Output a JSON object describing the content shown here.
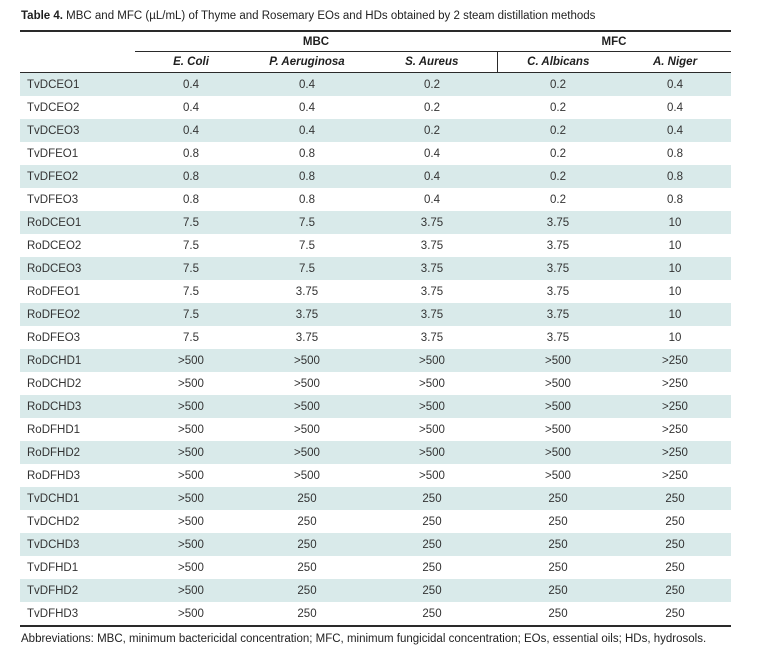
{
  "caption": {
    "label": "Table 4.",
    "text": " MBC and MFC (µL/mL) of Thyme and Rosemary EOs and HDs obtained by 2 steam distillation methods"
  },
  "table": {
    "group_headers": [
      {
        "label": "MBC",
        "span": 3
      },
      {
        "label": "MFC",
        "span": 2
      }
    ],
    "column_headers": [
      "E. Coli",
      "P. Aeruginosa",
      "S. Aureus",
      "C. Albicans",
      "A. Niger"
    ],
    "rows": [
      {
        "label": "TvDCEO1",
        "values": [
          "0.4",
          "0.4",
          "0.2",
          "0.2",
          "0.4"
        ]
      },
      {
        "label": "TvDCEO2",
        "values": [
          "0.4",
          "0.4",
          "0.2",
          "0.2",
          "0.4"
        ]
      },
      {
        "label": "TvDCEO3",
        "values": [
          "0.4",
          "0.4",
          "0.2",
          "0.2",
          "0.4"
        ]
      },
      {
        "label": "TvDFEO1",
        "values": [
          "0.8",
          "0.8",
          "0.4",
          "0.2",
          "0.8"
        ]
      },
      {
        "label": "TvDFEO2",
        "values": [
          "0.8",
          "0.8",
          "0.4",
          "0.2",
          "0.8"
        ]
      },
      {
        "label": "TvDFEO3",
        "values": [
          "0.8",
          "0.8",
          "0.4",
          "0.2",
          "0.8"
        ]
      },
      {
        "label": "RoDCEO1",
        "values": [
          "7.5",
          "7.5",
          "3.75",
          "3.75",
          "10"
        ]
      },
      {
        "label": "RoDCEO2",
        "values": [
          "7.5",
          "7.5",
          "3.75",
          "3.75",
          "10"
        ]
      },
      {
        "label": "RoDCEO3",
        "values": [
          "7.5",
          "7.5",
          "3.75",
          "3.75",
          "10"
        ]
      },
      {
        "label": "RoDFEO1",
        "values": [
          "7.5",
          "3.75",
          "3.75",
          "3.75",
          "10"
        ]
      },
      {
        "label": "RoDFEO2",
        "values": [
          "7.5",
          "3.75",
          "3.75",
          "3.75",
          "10"
        ]
      },
      {
        "label": "RoDFEO3",
        "values": [
          "7.5",
          "3.75",
          "3.75",
          "3.75",
          "10"
        ]
      },
      {
        "label": "RoDCHD1",
        "values": [
          ">500",
          ">500",
          ">500",
          ">500",
          ">250"
        ]
      },
      {
        "label": "RoDCHD2",
        "values": [
          ">500",
          ">500",
          ">500",
          ">500",
          ">250"
        ]
      },
      {
        "label": "RoDCHD3",
        "values": [
          ">500",
          ">500",
          ">500",
          ">500",
          ">250"
        ]
      },
      {
        "label": "RoDFHD1",
        "values": [
          ">500",
          ">500",
          ">500",
          ">500",
          ">250"
        ]
      },
      {
        "label": "RoDFHD2",
        "values": [
          ">500",
          ">500",
          ">500",
          ">500",
          ">250"
        ]
      },
      {
        "label": "RoDFHD3",
        "values": [
          ">500",
          ">500",
          ">500",
          ">500",
          ">250"
        ]
      },
      {
        "label": "TvDCHD1",
        "values": [
          ">500",
          "250",
          "250",
          "250",
          "250"
        ]
      },
      {
        "label": "TvDCHD2",
        "values": [
          ">500",
          "250",
          "250",
          "250",
          "250"
        ]
      },
      {
        "label": "TvDCHD3",
        "values": [
          ">500",
          "250",
          "250",
          "250",
          "250"
        ]
      },
      {
        "label": "TvDFHD1",
        "values": [
          ">500",
          "250",
          "250",
          "250",
          "250"
        ]
      },
      {
        "label": "TvDFHD2",
        "values": [
          ">500",
          "250",
          "250",
          "250",
          "250"
        ]
      },
      {
        "label": "TvDFHD3",
        "values": [
          ">500",
          "250",
          "250",
          "250",
          "250"
        ]
      }
    ]
  },
  "footnote": "Abbreviations: MBC, minimum bactericidal concentration; MFC, minimum fungicidal concentration; EOs, essential oils; HDs, hydrosols.",
  "colors": {
    "band": "#d9eaea",
    "rule": "#2a2a2a",
    "text": "#333333"
  }
}
